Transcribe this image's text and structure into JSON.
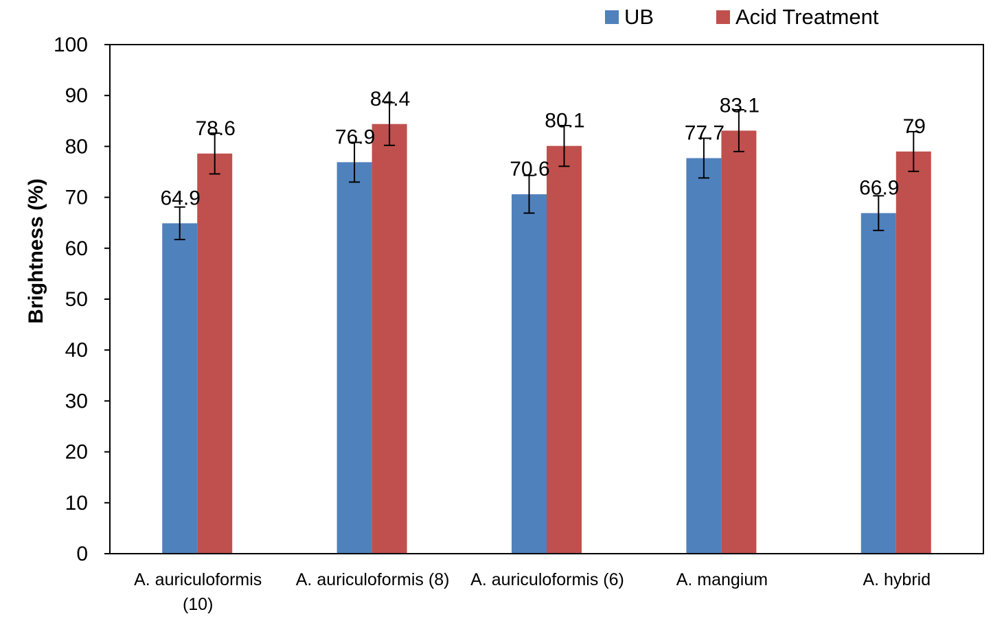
{
  "chart_data": {
    "type": "bar",
    "title": "",
    "xlabel": "",
    "ylabel": "Brightness (%)",
    "ylim": [
      0,
      100
    ],
    "yticks": [
      0,
      10,
      20,
      30,
      40,
      50,
      60,
      70,
      80,
      90,
      100
    ],
    "grid": false,
    "legend_position": "top-right",
    "categories": [
      [
        "A. auriculoformis",
        "(10)"
      ],
      [
        "A. auriculoformis (8)"
      ],
      [
        "A. auriculoformis (6)"
      ],
      [
        "A. mangium"
      ],
      [
        "A. hybrid"
      ]
    ],
    "series": [
      {
        "name": "UB",
        "color": "#4F81BD",
        "values": [
          64.9,
          76.9,
          70.6,
          77.7,
          66.9
        ],
        "labels": [
          "64.9",
          "76.9",
          "70.6",
          "77.7",
          "66.9"
        ],
        "error": [
          3.2,
          3.9,
          3.7,
          3.9,
          3.4
        ]
      },
      {
        "name": "Acid Treatment",
        "color": "#C0504D",
        "values": [
          78.6,
          84.4,
          80.1,
          83.1,
          79
        ],
        "labels": [
          "78.6",
          "84.4",
          "80.1",
          "83.1",
          "79"
        ],
        "error": [
          4.0,
          4.2,
          4.0,
          4.1,
          3.9
        ]
      }
    ]
  }
}
